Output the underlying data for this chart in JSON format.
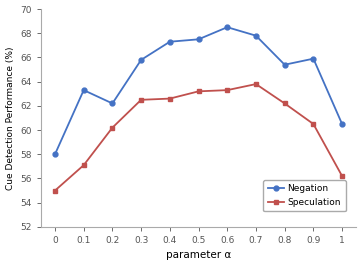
{
  "x": [
    0,
    0.1,
    0.2,
    0.3,
    0.4,
    0.5,
    0.6,
    0.7,
    0.8,
    0.9,
    1.0
  ],
  "negation": [
    58.0,
    63.3,
    62.2,
    65.8,
    67.3,
    67.5,
    68.5,
    67.8,
    65.4,
    65.9,
    60.5
  ],
  "speculation": [
    55.0,
    57.1,
    60.2,
    62.5,
    62.6,
    63.2,
    63.3,
    63.8,
    62.2,
    60.5,
    56.2
  ],
  "negation_color": "#4472C4",
  "speculation_color": "#C0504D",
  "xlabel": "parameter α",
  "ylabel": "Cue Detection Performance (%)",
  "ylim": [
    52,
    70
  ],
  "xlim": [
    -0.05,
    1.05
  ],
  "yticks": [
    52,
    54,
    56,
    58,
    60,
    62,
    64,
    66,
    68,
    70
  ],
  "xticks": [
    0,
    0.1,
    0.2,
    0.3,
    0.4,
    0.5,
    0.6,
    0.7,
    0.8,
    0.9,
    1.0
  ],
  "xtick_labels": [
    "0",
    "0.1",
    "0.2",
    "0.3",
    "0.4",
    "0.5",
    "0.6",
    "0.7",
    "0.8",
    "0.9",
    "1"
  ],
  "legend_negation": "Negation",
  "legend_speculation": "Speculation",
  "background_color": "#ffffff",
  "axes_color": "#ffffff"
}
